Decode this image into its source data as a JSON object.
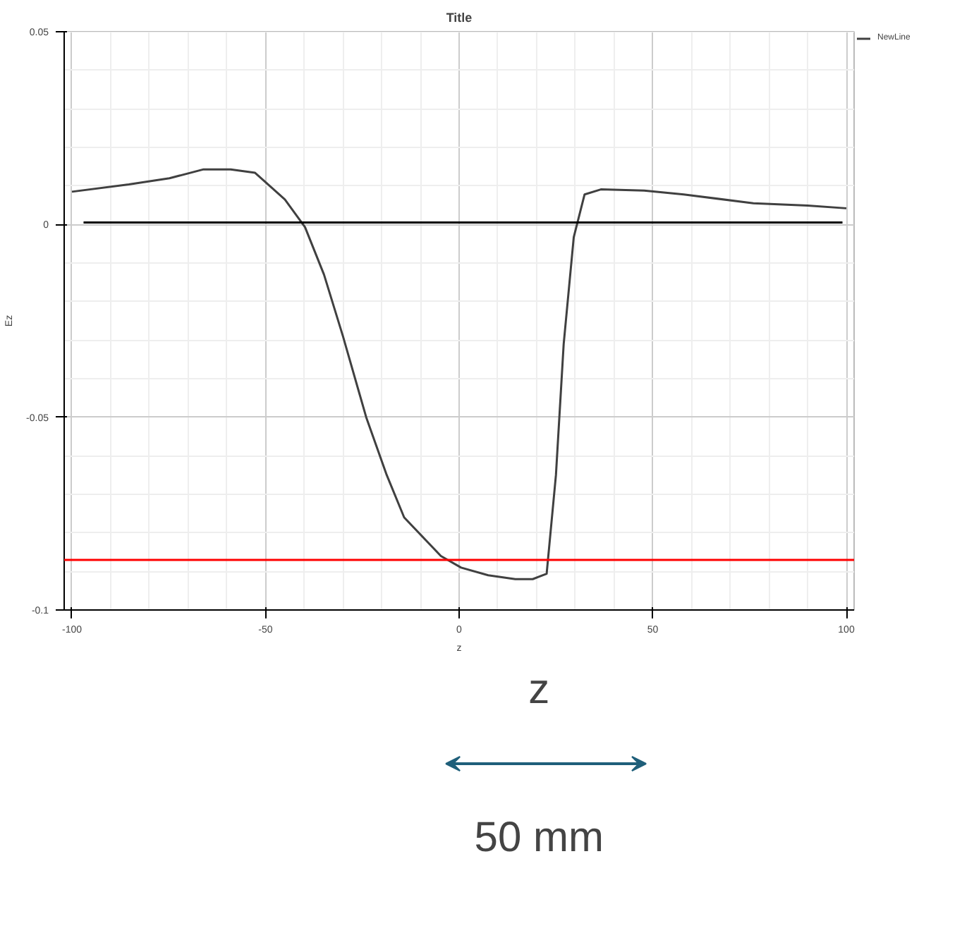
{
  "chart_data": {
    "type": "line",
    "title": "Title",
    "xlabel": "z",
    "ylabel": "Ez",
    "xlim": [
      -102,
      102
    ],
    "ylim": [
      -0.1,
      0.05
    ],
    "xticks": [
      -100,
      -50,
      0,
      50,
      100
    ],
    "yticks": [
      -0.1,
      -0.05,
      0,
      0.05
    ],
    "grid": true,
    "legend": "top right",
    "series": [
      {
        "name": "NewLine",
        "color": "#404040",
        "x": [
          -100,
          -85.3,
          -74.8,
          -66,
          -59,
          -52.7,
          -45,
          -39.8,
          -34.9,
          -30,
          -24,
          -18.7,
          -14.2,
          -4.7,
          0.5,
          7.5,
          14.5,
          19,
          22.6,
          25,
          27,
          29.6,
          32.4,
          36.6,
          47.8,
          58,
          76,
          90,
          100
        ],
        "values": [
          0.0085,
          0.0104,
          0.012,
          0.0143,
          0.0143,
          0.0134,
          0.0065,
          -0.0007,
          -0.013,
          -0.029,
          -0.05,
          -0.065,
          -0.076,
          -0.086,
          -0.089,
          -0.091,
          -0.092,
          -0.092,
          -0.0906,
          -0.065,
          -0.031,
          -0.0033,
          0.0078,
          0.0091,
          0.0088,
          0.0078,
          0.0055,
          0.0049,
          0.0042
        ]
      },
      {
        "color": "#000000",
        "x": [
          -97,
          99
        ],
        "values": [
          0.0005,
          0.0005
        ]
      }
    ],
    "ref_lines": [
      {
        "axis": "y",
        "value": -0.087,
        "color": "#ff0000"
      }
    ],
    "annotations": [
      "z",
      "50 mm"
    ]
  }
}
